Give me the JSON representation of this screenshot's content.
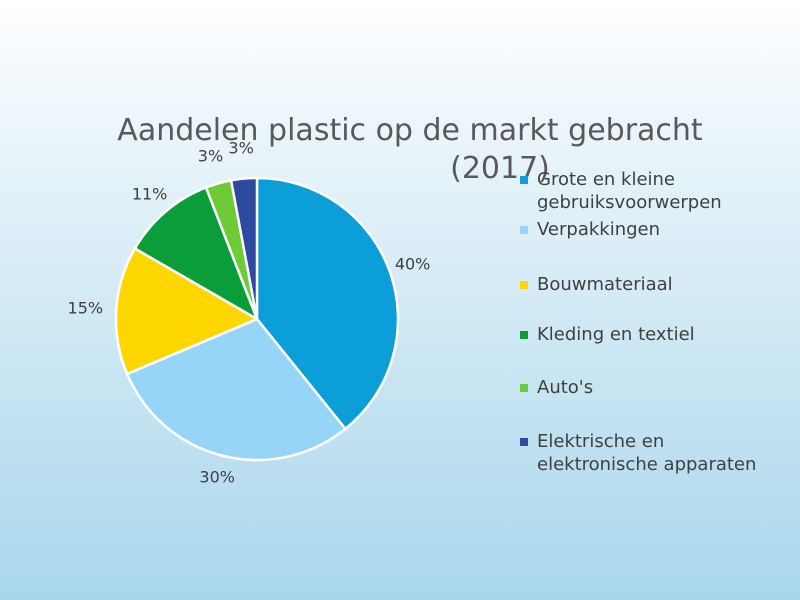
{
  "chart_data": {
    "type": "pie",
    "title_lines": [
      "Aandelen plastic op de markt gebracht",
      "(2017)"
    ],
    "categories": [
      "Grote en kleine gebruiksvoorwerpen",
      "Verpakkingen",
      "Bouwmateriaal",
      "Kleding en textiel",
      "Auto's",
      "Elektrische en elektronische apparaten"
    ],
    "values": [
      40,
      30,
      15,
      11,
      3,
      3
    ],
    "data_labels": [
      "40%",
      "30%",
      "15%",
      "11%",
      "3%",
      "3%"
    ],
    "colors": [
      "#0C9ED8",
      "#97D5F8",
      "#FFD700",
      "#0A9E3A",
      "#6CCB37",
      "#2E4A9E"
    ],
    "legend_lines": [
      [
        "Grote en kleine",
        "gebruiksvoorwerpen"
      ],
      [
        "Verpakkingen"
      ],
      [
        "Bouwmateriaal"
      ],
      [
        "Kleding en textiel"
      ],
      [
        "Auto's"
      ],
      [
        "Elektrische en",
        "elektronische apparaten"
      ]
    ],
    "legend_position": "right",
    "start_angle": "12 o'clock, clockwise"
  }
}
